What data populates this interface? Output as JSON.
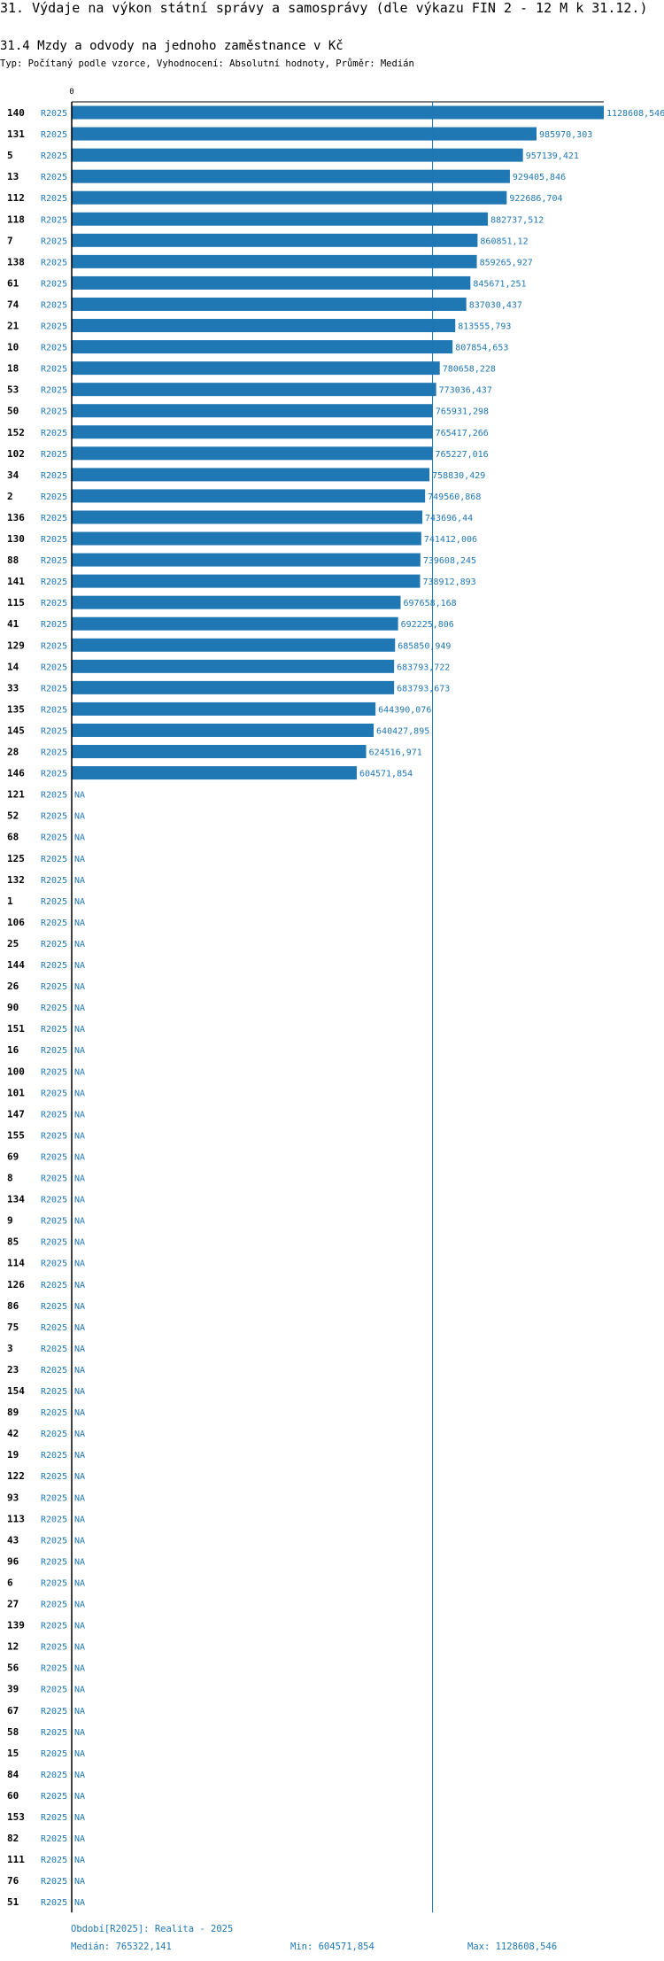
{
  "title": "31. Výdaje na výkon státní správy a samosprávy (dle výkazu FIN 2 - 12 M k 31.12.)",
  "subtitle": "31.4 Mzdy a odvody na jednoho zaměstnance v Kč",
  "meta": "Typ: Počítaný podle vzorce, Vyhodnocení: Absolutní hodnoty, Průměr: Medián",
  "colors": {
    "bar": "#1f77b4",
    "text": "#000000",
    "link": "#1f77b4"
  },
  "chart_data": {
    "type": "bar",
    "orientation": "horizontal",
    "axis_zero_label": "0",
    "period_label": "R2025",
    "na_label": "NA",
    "median": 765322.141,
    "xlim": [
      0,
      1128608.546
    ],
    "rows": [
      {
        "id": "140",
        "value": 1128608.546,
        "label": "1128608,546"
      },
      {
        "id": "131",
        "value": 985970.303,
        "label": "985970,303"
      },
      {
        "id": "5",
        "value": 957139.421,
        "label": "957139,421"
      },
      {
        "id": "13",
        "value": 929405.846,
        "label": "929405,846"
      },
      {
        "id": "112",
        "value": 922686.704,
        "label": "922686,704"
      },
      {
        "id": "118",
        "value": 882737.512,
        "label": "882737,512"
      },
      {
        "id": "7",
        "value": 860851.12,
        "label": "860851,12"
      },
      {
        "id": "138",
        "value": 859265.927,
        "label": "859265,927"
      },
      {
        "id": "61",
        "value": 845671.251,
        "label": "845671,251"
      },
      {
        "id": "74",
        "value": 837030.437,
        "label": "837030,437"
      },
      {
        "id": "21",
        "value": 813555.793,
        "label": "813555,793"
      },
      {
        "id": "10",
        "value": 807854.653,
        "label": "807854,653"
      },
      {
        "id": "18",
        "value": 780658.228,
        "label": "780658,228"
      },
      {
        "id": "53",
        "value": 773036.437,
        "label": "773036,437"
      },
      {
        "id": "50",
        "value": 765931.298,
        "label": "765931,298"
      },
      {
        "id": "152",
        "value": 765417.266,
        "label": "765417,266"
      },
      {
        "id": "102",
        "value": 765227.016,
        "label": "765227,016"
      },
      {
        "id": "34",
        "value": 758830.429,
        "label": "758830,429"
      },
      {
        "id": "2",
        "value": 749560.868,
        "label": "749560,868"
      },
      {
        "id": "136",
        "value": 743696.44,
        "label": "743696,44"
      },
      {
        "id": "130",
        "value": 741412.006,
        "label": "741412,006"
      },
      {
        "id": "88",
        "value": 739608.245,
        "label": "739608,245"
      },
      {
        "id": "141",
        "value": 738912.893,
        "label": "738912,893"
      },
      {
        "id": "115",
        "value": 697658.168,
        "label": "697658,168"
      },
      {
        "id": "41",
        "value": 692225.806,
        "label": "692225,806"
      },
      {
        "id": "129",
        "value": 685850.949,
        "label": "685850,949"
      },
      {
        "id": "14",
        "value": 683793.722,
        "label": "683793,722"
      },
      {
        "id": "33",
        "value": 683793.673,
        "label": "683793,673"
      },
      {
        "id": "135",
        "value": 644390.076,
        "label": "644390,076"
      },
      {
        "id": "145",
        "value": 640427.895,
        "label": "640427,895"
      },
      {
        "id": "28",
        "value": 624516.971,
        "label": "624516,971"
      },
      {
        "id": "146",
        "value": 604571.854,
        "label": "604571,854"
      },
      {
        "id": "121",
        "value": null
      },
      {
        "id": "52",
        "value": null
      },
      {
        "id": "68",
        "value": null
      },
      {
        "id": "125",
        "value": null
      },
      {
        "id": "132",
        "value": null
      },
      {
        "id": "1",
        "value": null
      },
      {
        "id": "106",
        "value": null
      },
      {
        "id": "25",
        "value": null
      },
      {
        "id": "144",
        "value": null
      },
      {
        "id": "26",
        "value": null
      },
      {
        "id": "90",
        "value": null
      },
      {
        "id": "151",
        "value": null
      },
      {
        "id": "16",
        "value": null
      },
      {
        "id": "100",
        "value": null
      },
      {
        "id": "101",
        "value": null
      },
      {
        "id": "147",
        "value": null
      },
      {
        "id": "155",
        "value": null
      },
      {
        "id": "69",
        "value": null
      },
      {
        "id": "8",
        "value": null
      },
      {
        "id": "134",
        "value": null
      },
      {
        "id": "9",
        "value": null
      },
      {
        "id": "85",
        "value": null
      },
      {
        "id": "114",
        "value": null
      },
      {
        "id": "126",
        "value": null
      },
      {
        "id": "86",
        "value": null
      },
      {
        "id": "75",
        "value": null
      },
      {
        "id": "3",
        "value": null
      },
      {
        "id": "23",
        "value": null
      },
      {
        "id": "154",
        "value": null
      },
      {
        "id": "89",
        "value": null
      },
      {
        "id": "42",
        "value": null
      },
      {
        "id": "19",
        "value": null
      },
      {
        "id": "122",
        "value": null
      },
      {
        "id": "93",
        "value": null
      },
      {
        "id": "113",
        "value": null
      },
      {
        "id": "43",
        "value": null
      },
      {
        "id": "96",
        "value": null
      },
      {
        "id": "6",
        "value": null
      },
      {
        "id": "27",
        "value": null
      },
      {
        "id": "139",
        "value": null
      },
      {
        "id": "12",
        "value": null
      },
      {
        "id": "56",
        "value": null
      },
      {
        "id": "39",
        "value": null
      },
      {
        "id": "67",
        "value": null
      },
      {
        "id": "58",
        "value": null
      },
      {
        "id": "15",
        "value": null
      },
      {
        "id": "84",
        "value": null
      },
      {
        "id": "60",
        "value": null
      },
      {
        "id": "153",
        "value": null
      },
      {
        "id": "82",
        "value": null
      },
      {
        "id": "111",
        "value": null
      },
      {
        "id": "76",
        "value": null
      },
      {
        "id": "51",
        "value": null
      }
    ]
  },
  "footer": {
    "period": "Období[R2025]: Realita - 2025",
    "median": "Medián: 765322,141",
    "min": "Min: 604571,854",
    "max": "Max: 1128608,546"
  }
}
